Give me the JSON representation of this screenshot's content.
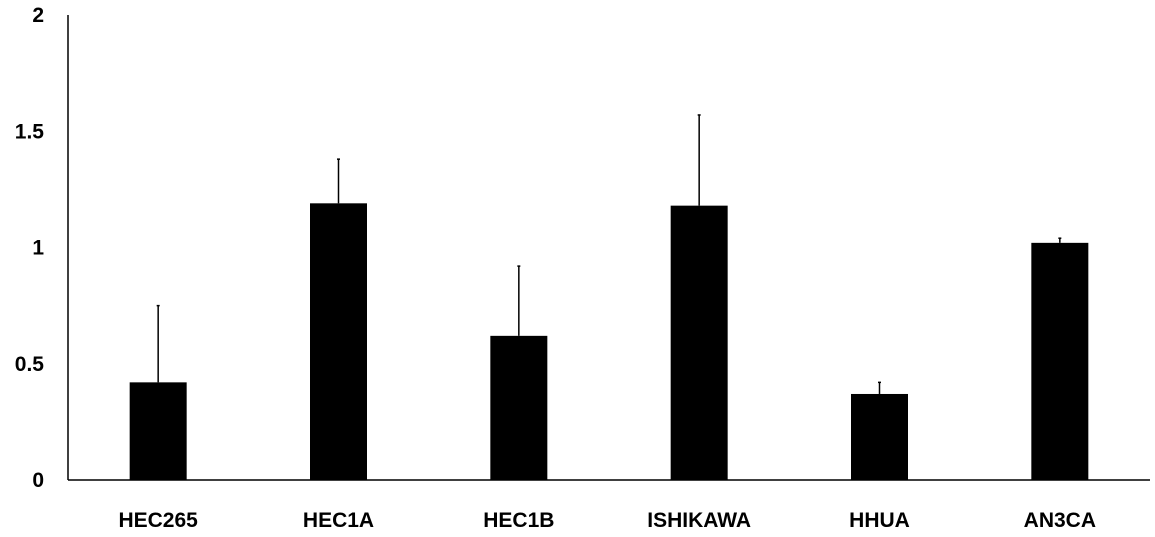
{
  "chart_data": {
    "type": "bar",
    "title": "",
    "xlabel": "",
    "ylabel": "",
    "categories": [
      "HEC265",
      "HEC1A",
      "HEC1B",
      "ISHIKAWA",
      "HHUA",
      "AN3CA"
    ],
    "values": [
      0.42,
      1.19,
      0.62,
      1.18,
      0.37,
      1.02
    ],
    "error_plus": [
      0.33,
      0.19,
      0.3,
      0.39,
      0.05,
      0.02
    ],
    "ylim": [
      0,
      2
    ],
    "y_ticks": [
      0,
      0.5,
      1,
      1.5,
      2
    ],
    "y_tick_labels": [
      "0",
      "0.5",
      "1",
      "1.5",
      "2"
    ],
    "grid": false,
    "legend": "none",
    "bar_color": "#000000",
    "axis_color": "#000000"
  }
}
